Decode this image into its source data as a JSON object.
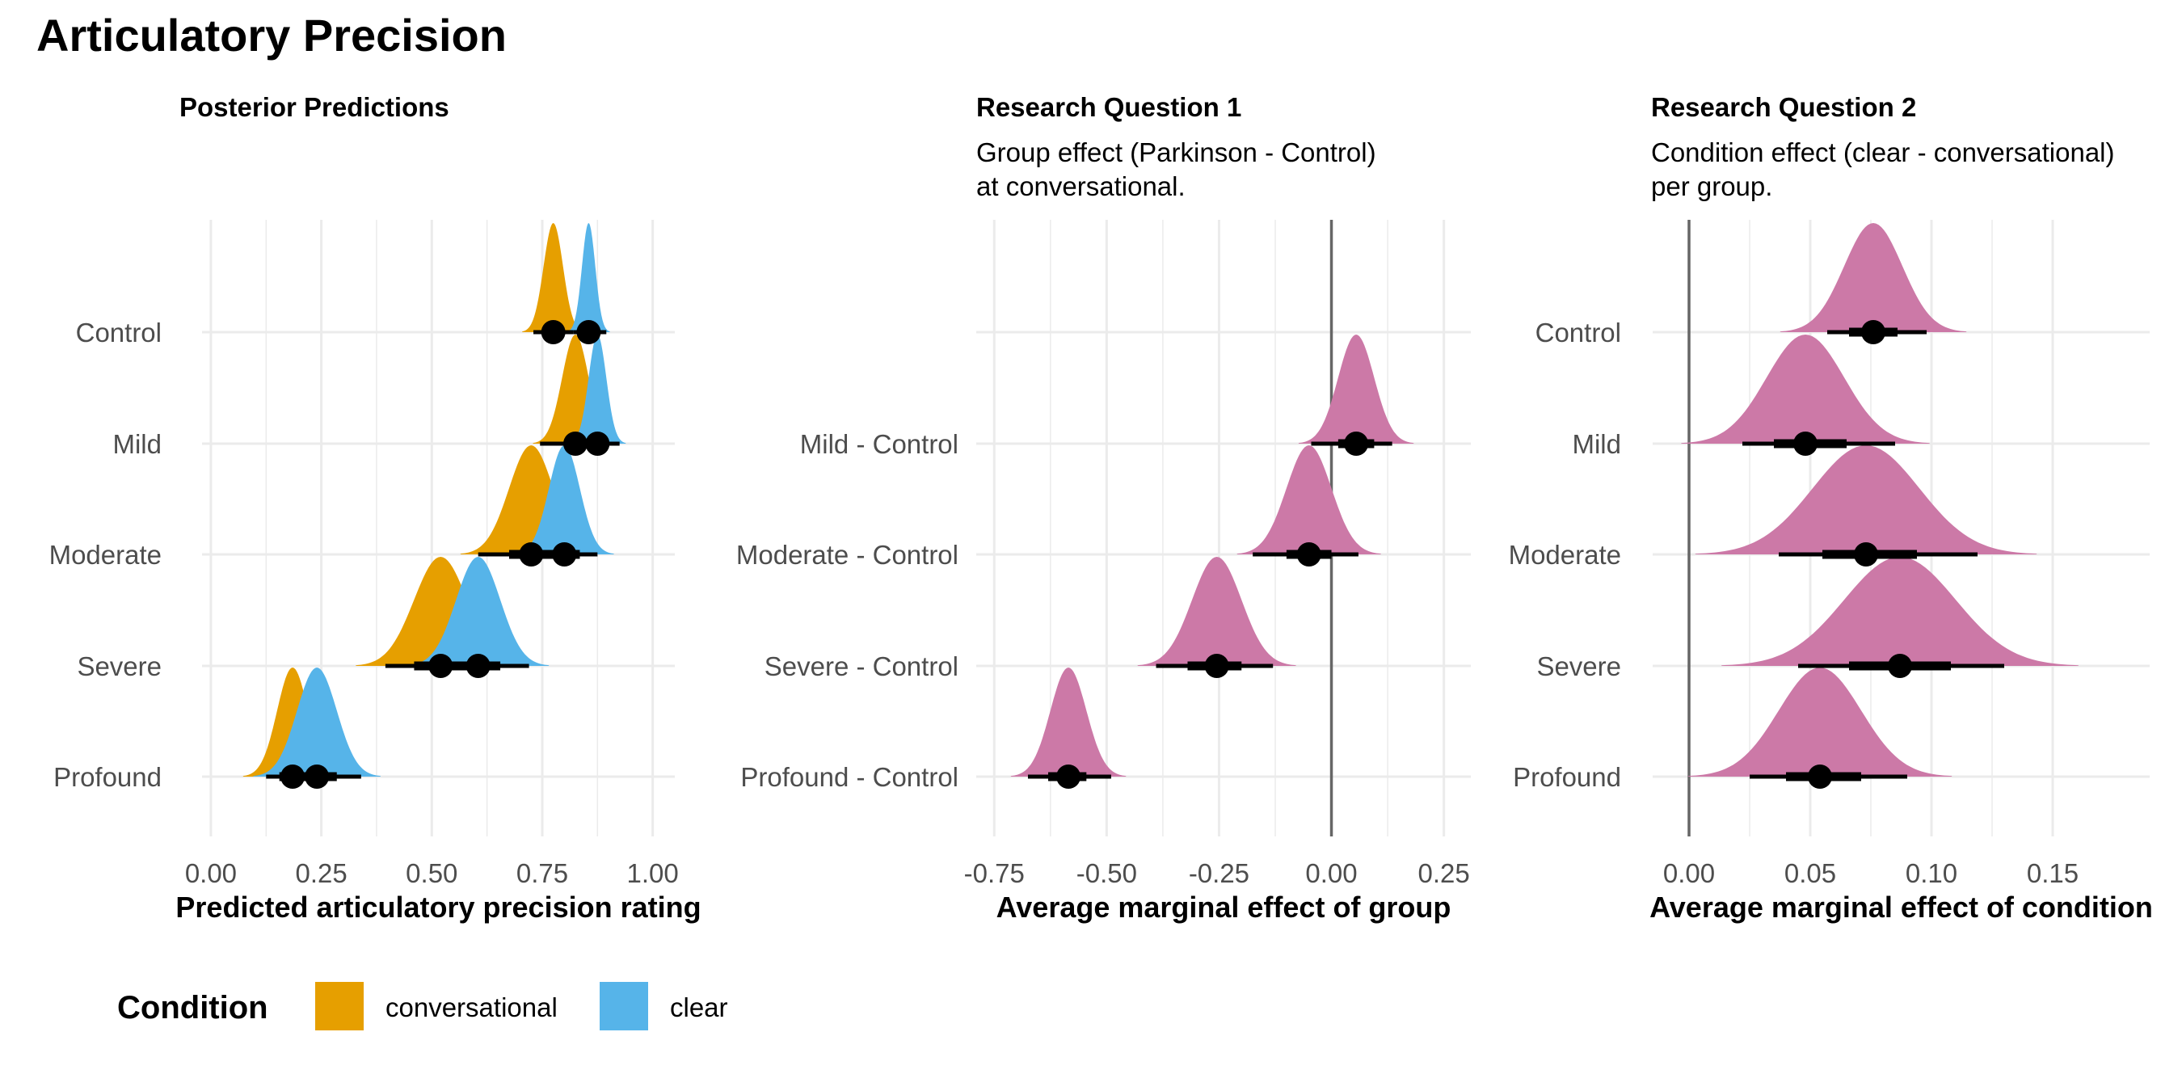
{
  "figure_title": "Articulatory Precision",
  "colors": {
    "conversational": "#E69F00",
    "clear": "#56B4E9",
    "effect": "#CC79A7",
    "grid": "#EBEBEB",
    "zero_line": "#666666",
    "point": "#000000"
  },
  "legend": {
    "title": "Condition",
    "items": [
      {
        "label": "conversational",
        "color": "#E69F00"
      },
      {
        "label": "clear",
        "color": "#56B4E9"
      }
    ]
  },
  "chart_data": [
    {
      "id": "posterior",
      "type": "halfeye",
      "title": "Posterior Predictions",
      "subtitle": [],
      "xlabel": "Predicted articulatory precision rating",
      "xlim": [
        -0.02,
        1.05
      ],
      "xticks": [
        0,
        0.25,
        0.5,
        0.75,
        1.0
      ],
      "xtick_labels": [
        "0.00",
        "0.25",
        "0.50",
        "0.75",
        "1.00"
      ],
      "categories": [
        "Control",
        "Mild",
        "Moderate",
        "Severe",
        "Profound"
      ],
      "zero_line": false,
      "series": [
        {
          "name": "conversational",
          "color": "#E69F00",
          "points": [
            {
              "category": "Control",
              "median": 0.775,
              "sd": 0.022,
              "q66": [
                0.755,
                0.795
              ],
              "q95": [
                0.73,
                0.82
              ]
            },
            {
              "category": "Mild",
              "median": 0.825,
              "sd": 0.03,
              "q66": [
                0.8,
                0.855
              ],
              "q95": [
                0.745,
                0.895
              ]
            },
            {
              "category": "Moderate",
              "median": 0.725,
              "sd": 0.05,
              "q66": [
                0.675,
                0.775
              ],
              "q95": [
                0.605,
                0.83
              ]
            },
            {
              "category": "Severe",
              "median": 0.52,
              "sd": 0.06,
              "q66": [
                0.46,
                0.58
              ],
              "q95": [
                0.395,
                0.655
              ]
            },
            {
              "category": "Profound",
              "median": 0.185,
              "sd": 0.035,
              "q66": [
                0.155,
                0.215
              ],
              "q95": [
                0.125,
                0.255
              ]
            }
          ]
        },
        {
          "name": "clear",
          "color": "#56B4E9",
          "points": [
            {
              "category": "Control",
              "median": 0.855,
              "sd": 0.015,
              "q66": [
                0.84,
                0.87
              ],
              "q95": [
                0.82,
                0.895
              ]
            },
            {
              "category": "Mild",
              "median": 0.875,
              "sd": 0.02,
              "q66": [
                0.855,
                0.895
              ],
              "q95": [
                0.83,
                0.925
              ]
            },
            {
              "category": "Moderate",
              "median": 0.8,
              "sd": 0.035,
              "q66": [
                0.765,
                0.835
              ],
              "q95": [
                0.725,
                0.875
              ]
            },
            {
              "category": "Severe",
              "median": 0.605,
              "sd": 0.05,
              "q66": [
                0.56,
                0.655
              ],
              "q95": [
                0.49,
                0.72
              ]
            },
            {
              "category": "Profound",
              "median": 0.24,
              "sd": 0.045,
              "q66": [
                0.2,
                0.285
              ],
              "q95": [
                0.165,
                0.34
              ]
            }
          ]
        }
      ]
    },
    {
      "id": "rq1",
      "type": "halfeye",
      "title": "Research Question 1",
      "subtitle": [
        "Group effect (Parkinson - Control)",
        "at conversational."
      ],
      "xlabel": "Average marginal effect of group",
      "xlim": [
        -0.79,
        0.31
      ],
      "xticks": [
        -0.75,
        -0.5,
        -0.25,
        0,
        0.25
      ],
      "xtick_labels": [
        "-0.75",
        "-0.50",
        "-0.25",
        "0.00",
        "0.25"
      ],
      "categories": [
        "",
        "Mild - Control",
        "Moderate - Control",
        "Severe - Control",
        "Profound - Control"
      ],
      "zero_line": true,
      "series": [
        {
          "name": "effect",
          "color": "#CC79A7",
          "points": [
            {
              "category": "Mild - Control",
              "median": 0.055,
              "sd": 0.04,
              "q66": [
                0.015,
                0.095
              ],
              "q95": [
                -0.045,
                0.135
              ]
            },
            {
              "category": "Moderate - Control",
              "median": -0.05,
              "sd": 0.05,
              "q66": [
                -0.1,
                0.0
              ],
              "q95": [
                -0.175,
                0.06
              ]
            },
            {
              "category": "Severe - Control",
              "median": -0.255,
              "sd": 0.055,
              "q66": [
                -0.32,
                -0.2
              ],
              "q95": [
                -0.39,
                -0.13
              ]
            },
            {
              "category": "Profound - Control",
              "median": -0.585,
              "sd": 0.04,
              "q66": [
                -0.63,
                -0.545
              ],
              "q95": [
                -0.675,
                -0.49
              ]
            }
          ]
        }
      ]
    },
    {
      "id": "rq2",
      "type": "halfeye",
      "title": "Research Question 2",
      "subtitle": [
        "Condition effect (clear - conversational)",
        "per group."
      ],
      "xlabel": "Average marginal effect of condition",
      "xlim": [
        -0.015,
        0.19
      ],
      "xticks": [
        0,
        0.05,
        0.1,
        0.15
      ],
      "xtick_labels": [
        "0.00",
        "0.05",
        "0.10",
        "0.15"
      ],
      "categories": [
        "Control",
        "Mild",
        "Moderate",
        "Severe",
        "Profound"
      ],
      "zero_line": true,
      "series": [
        {
          "name": "effect",
          "color": "#CC79A7",
          "points": [
            {
              "category": "Control",
              "median": 0.076,
              "sd": 0.012,
              "q66": [
                0.066,
                0.086
              ],
              "q95": [
                0.057,
                0.098
              ]
            },
            {
              "category": "Mild",
              "median": 0.048,
              "sd": 0.016,
              "q66": [
                0.035,
                0.065
              ],
              "q95": [
                0.022,
                0.085
              ]
            },
            {
              "category": "Moderate",
              "median": 0.073,
              "sd": 0.022,
              "q66": [
                0.055,
                0.094
              ],
              "q95": [
                0.037,
                0.119
              ]
            },
            {
              "category": "Severe",
              "median": 0.087,
              "sd": 0.023,
              "q66": [
                0.066,
                0.108
              ],
              "q95": [
                0.045,
                0.13
              ]
            },
            {
              "category": "Profound",
              "median": 0.054,
              "sd": 0.017,
              "q66": [
                0.04,
                0.071
              ],
              "q95": [
                0.025,
                0.09
              ]
            }
          ]
        }
      ]
    }
  ]
}
